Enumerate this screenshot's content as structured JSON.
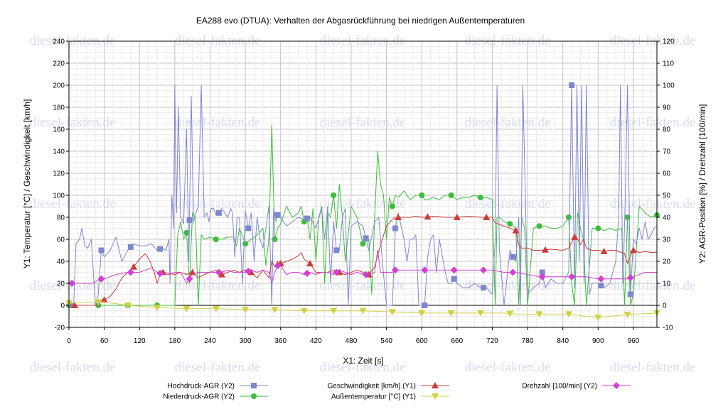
{
  "chart_data": {
    "type": "line",
    "title": "EA288 evo (DTUA): Verhalten der Abgasrückführung bei niedrigen Außentemperaturen",
    "xlabel": "X1: Zeit [s]",
    "y1label": "Y1: Temperatur [°C] / Geschwindigkeit [km/h]",
    "y2label": "Y2: AGR-Position [%] / Drehzahl [100/min]",
    "xlim": [
      0,
      1000
    ],
    "y1lim": [
      -20,
      240
    ],
    "y2lim": [
      -10,
      120
    ],
    "x_ticks": [
      0,
      60,
      120,
      180,
      240,
      300,
      360,
      420,
      480,
      540,
      600,
      660,
      720,
      780,
      840,
      900,
      960
    ],
    "y1_ticks": [
      -20,
      0,
      20,
      40,
      60,
      80,
      100,
      120,
      140,
      160,
      180,
      200,
      220,
      240
    ],
    "y2_ticks": [
      -10,
      0,
      10,
      20,
      30,
      40,
      50,
      60,
      70,
      80,
      90,
      100,
      110,
      120
    ],
    "grid": true,
    "legend_position": "bottom",
    "watermark": "diesel-fakten.de",
    "series": [
      {
        "name": "Hochdruck-AGR (Y2)",
        "axis": "Y2",
        "color": "#7f86d0",
        "marker": "square",
        "x": [
          0,
          8,
          12,
          18,
          22,
          27,
          32,
          38,
          45,
          50,
          55,
          60,
          70,
          80,
          90,
          100,
          110,
          120,
          130,
          140,
          150,
          158,
          165,
          170,
          172,
          175,
          178,
          180,
          183,
          186,
          190,
          195,
          200,
          204,
          208,
          212,
          216,
          220,
          225,
          230,
          235,
          238,
          242,
          246,
          250,
          255,
          260,
          265,
          270,
          275,
          278,
          282,
          286,
          290,
          295,
          300,
          305,
          310,
          315,
          320,
          325,
          330,
          335,
          340,
          345,
          348,
          352,
          356,
          360,
          370,
          380,
          390,
          400,
          410,
          420,
          430,
          435,
          440,
          445,
          450,
          455,
          460,
          465,
          470,
          475,
          480,
          490,
          500,
          510,
          520,
          527,
          533,
          540,
          545,
          550,
          555,
          560,
          570,
          575,
          580,
          585,
          590,
          595,
          600,
          605,
          610,
          615,
          620,
          625,
          630,
          640,
          645,
          650,
          655,
          660,
          670,
          680,
          690,
          700,
          710,
          720,
          725,
          728,
          732,
          740,
          750,
          755,
          760,
          765,
          768,
          772,
          780,
          790,
          800,
          805,
          810,
          815,
          820,
          830,
          840,
          850,
          855,
          860,
          864,
          868,
          872,
          876,
          880,
          885,
          890,
          900,
          910,
          920,
          930,
          935,
          938,
          942,
          946,
          950,
          955,
          960,
          965,
          970,
          975,
          980,
          985,
          990,
          995,
          1000
        ],
        "values": [
          0,
          0,
          28,
          30,
          35,
          27,
          26,
          30,
          0,
          5,
          25,
          22,
          25,
          31,
          20,
          25,
          28,
          27,
          27,
          28,
          25,
          26,
          25,
          30,
          10,
          50,
          35,
          100,
          42,
          90,
          40,
          37,
          80,
          20,
          95,
          38,
          42,
          45,
          100,
          40,
          42,
          38,
          44,
          44,
          41,
          42,
          44,
          42,
          40,
          44,
          42,
          22,
          40,
          40,
          10,
          43,
          35,
          42,
          20,
          40,
          30,
          26,
          35,
          45,
          0,
          44,
          38,
          42,
          40,
          36,
          38,
          40,
          39,
          40,
          35,
          44,
          30,
          45,
          10,
          38,
          25,
          25,
          40,
          44,
          0,
          36,
          38,
          36,
          25,
          38,
          40,
          20,
          0,
          0,
          0,
          35,
          42,
          30,
          20,
          30,
          30,
          32,
          0,
          0,
          0,
          22,
          30,
          32,
          15,
          30,
          15,
          10,
          10,
          12,
          10,
          8,
          8,
          10,
          8,
          8,
          5,
          30,
          100,
          25,
          0,
          25,
          22,
          20,
          40,
          0,
          100,
          5,
          8,
          10,
          15,
          8,
          10,
          12,
          10,
          10,
          15,
          100,
          8,
          100,
          20,
          100,
          10,
          100,
          5,
          10,
          10,
          8,
          10,
          20,
          40,
          100,
          10,
          45,
          100,
          5,
          30,
          28,
          35,
          30,
          38,
          30,
          32,
          35,
          36
        ]
      },
      {
        "name": "Niederdruck-AGR (Y2)",
        "axis": "Y2",
        "color": "#3dbd3d",
        "marker": "circle",
        "x": [
          0,
          100,
          150,
          175,
          180,
          185,
          190,
          195,
          200,
          205,
          210,
          215,
          220,
          225,
          230,
          240,
          250,
          260,
          270,
          280,
          285,
          290,
          300,
          310,
          320,
          330,
          335,
          340,
          345,
          350,
          355,
          360,
          370,
          380,
          390,
          395,
          400,
          405,
          410,
          415,
          420,
          425,
          430,
          435,
          440,
          445,
          450,
          455,
          460,
          465,
          470,
          480,
          490,
          500,
          510,
          515,
          520,
          525,
          530,
          535,
          540,
          545,
          550,
          555,
          560,
          570,
          580,
          590,
          600,
          605,
          610,
          620,
          630,
          640,
          650,
          660,
          670,
          680,
          690,
          700,
          710,
          720,
          725,
          728,
          732,
          740,
          750,
          760,
          765,
          770,
          775,
          780,
          790,
          800,
          810,
          820,
          830,
          840,
          850,
          855,
          860,
          865,
          870,
          875,
          880,
          890,
          900,
          910,
          920,
          930,
          940,
          945,
          950,
          955,
          960,
          970,
          980,
          990,
          1000
        ],
        "values": [
          0,
          0,
          0,
          0,
          0,
          32,
          38,
          30,
          33,
          10,
          42,
          40,
          0,
          32,
          30,
          31,
          30,
          30,
          31,
          31,
          27,
          35,
          28,
          30,
          32,
          35,
          18,
          30,
          82,
          30,
          35,
          37,
          45,
          40,
          42,
          45,
          38,
          40,
          30,
          44,
          20,
          40,
          45,
          10,
          42,
          40,
          50,
          35,
          55,
          40,
          20,
          45,
          40,
          28,
          30,
          5,
          40,
          70,
          55,
          50,
          30,
          49,
          45,
          50,
          49,
          52,
          48,
          50,
          50,
          48,
          48,
          49,
          48,
          50,
          50,
          48,
          49,
          49,
          50,
          49,
          49,
          48,
          0,
          40,
          40,
          38,
          37,
          35,
          0,
          40,
          35,
          0,
          35,
          36,
          36,
          35,
          35,
          36,
          40,
          10,
          0,
          42,
          35,
          30,
          0,
          35,
          35,
          34,
          35,
          34,
          35,
          0,
          40,
          0,
          5,
          45,
          42,
          40,
          41
        ]
      },
      {
        "name": "Geschwindigkeit [km/h] (Y1)",
        "axis": "Y1",
        "color": "#cc3b3b",
        "marker": "triangle",
        "x": [
          0,
          50,
          55,
          60,
          70,
          80,
          90,
          100,
          110,
          120,
          130,
          138,
          145,
          150,
          155,
          160,
          170,
          180,
          190,
          200,
          210,
          220,
          230,
          240,
          250,
          260,
          270,
          280,
          290,
          300,
          310,
          320,
          330,
          340,
          345,
          350,
          355,
          360,
          370,
          380,
          390,
          395,
          400,
          405,
          410,
          420,
          430,
          440,
          450,
          460,
          470,
          480,
          490,
          500,
          510,
          520,
          530,
          540,
          550,
          555,
          560,
          570,
          580,
          590,
          600,
          620,
          640,
          660,
          680,
          700,
          720,
          725,
          740,
          750,
          760,
          765,
          770,
          780,
          790,
          800,
          820,
          840,
          850,
          860,
          865,
          870,
          875,
          880,
          890,
          900,
          910,
          920,
          930,
          940,
          945,
          950,
          955,
          960,
          970,
          980,
          990,
          1000
        ],
        "values": [
          0,
          0,
          5,
          5,
          8,
          15,
          25,
          30,
          35,
          42,
          47,
          40,
          30,
          20,
          28,
          30,
          29,
          28,
          30,
          28,
          30,
          25,
          28,
          30,
          32,
          28,
          30,
          32,
          30,
          32,
          30,
          25,
          32,
          25,
          40,
          35,
          40,
          38,
          40,
          42,
          45,
          48,
          42,
          40,
          38,
          30,
          30,
          30,
          32,
          30,
          28,
          30,
          32,
          30,
          28,
          35,
          55,
          72,
          78,
          80,
          80,
          80,
          80,
          81,
          80,
          81,
          80,
          80,
          81,
          80,
          80,
          75,
          72,
          70,
          68,
          55,
          52,
          52,
          50,
          50,
          51,
          50,
          52,
          62,
          60,
          55,
          60,
          52,
          50,
          50,
          49,
          50,
          50,
          48,
          47,
          38,
          45,
          50,
          48,
          49,
          48,
          48
        ]
      },
      {
        "name": "Außentemperatur [°C] (Y1)",
        "axis": "Y1",
        "color": "#d1d145",
        "marker": "triangle-down",
        "x": [
          0,
          10,
          30,
          60,
          100,
          150,
          200,
          250,
          300,
          350,
          400,
          450,
          500,
          550,
          600,
          650,
          700,
          740,
          760,
          800,
          850,
          880,
          900,
          940,
          960,
          1000
        ],
        "values": [
          2,
          2,
          3,
          3,
          0,
          -2,
          -3,
          -3,
          -4,
          -4,
          -5,
          -5,
          -5,
          -6,
          -7,
          -7,
          -7,
          -7,
          -8,
          -8,
          -8,
          -10,
          -11,
          -9,
          -8,
          -7
        ]
      },
      {
        "name": "Drehzahl [100/min] (Y2)",
        "axis": "Y2",
        "color": "#d23fd2",
        "marker": "diamond",
        "x": [
          0,
          20,
          40,
          55,
          60,
          80,
          100,
          120,
          140,
          150,
          160,
          170,
          180,
          190,
          200,
          210,
          220,
          230,
          240,
          250,
          260,
          270,
          280,
          290,
          300,
          310,
          320,
          330,
          340,
          345,
          350,
          355,
          360,
          370,
          380,
          390,
          400,
          410,
          420,
          430,
          440,
          450,
          460,
          470,
          480,
          490,
          500,
          510,
          520,
          525,
          530,
          540,
          550,
          555,
          560,
          580,
          600,
          620,
          640,
          660,
          680,
          700,
          720,
          740,
          760,
          780,
          800,
          820,
          840,
          860,
          880,
          900,
          920,
          940,
          950,
          960,
          980,
          1000
        ],
        "values": [
          10,
          10,
          10,
          12,
          12,
          14,
          15,
          15,
          17,
          15,
          14,
          14,
          15,
          15,
          10,
          14,
          15,
          15,
          15,
          15,
          15,
          16,
          15,
          15,
          15,
          16,
          15,
          16,
          15,
          10,
          15,
          18,
          18,
          14,
          15,
          15,
          14,
          15,
          14,
          15,
          15,
          14,
          16,
          15,
          14,
          15,
          14,
          14,
          15,
          25,
          15,
          15,
          15,
          16,
          16,
          16,
          16,
          16,
          16,
          16,
          16,
          16,
          16,
          15,
          15,
          14,
          13,
          13,
          13,
          13,
          13,
          12,
          12,
          12,
          12,
          13,
          15,
          15
        ]
      }
    ]
  }
}
